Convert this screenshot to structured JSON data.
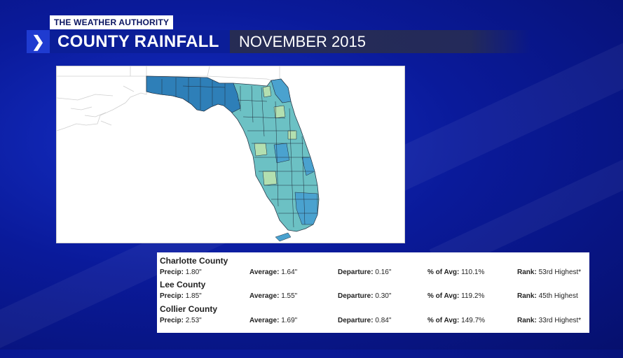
{
  "header": {
    "brand": "THE WEATHER AUTHORITY",
    "title": "COUNTY RAINFALL",
    "subtitle": "NOVEMBER 2015",
    "chevron_icon": "chevron-right-icon"
  },
  "map": {
    "region": "Florida counties",
    "legend_colors": [
      "#2e7fb8",
      "#4aa2cf",
      "#6cc1c4",
      "#8dcfbf",
      "#b3dfb0"
    ]
  },
  "labels": {
    "precip": "Precip:",
    "average": "Average:",
    "departure": "Departure:",
    "pct_avg": "% of Avg:",
    "rank": "Rank:"
  },
  "counties": [
    {
      "name": "Charlotte County",
      "precip": "1.80\"",
      "average": "1.64\"",
      "departure": "0.16\"",
      "pct_avg": "110.1%",
      "rank": "53rd Highest*"
    },
    {
      "name": "Lee County",
      "precip": "1.85\"",
      "average": "1.55\"",
      "departure": "0.30\"",
      "pct_avg": "119.2%",
      "rank": "45th Highest"
    },
    {
      "name": "Collier County",
      "precip": "2.53\"",
      "average": "1.69\"",
      "departure": "0.84\"",
      "pct_avg": "149.7%",
      "rank": "33rd Highest*"
    }
  ]
}
